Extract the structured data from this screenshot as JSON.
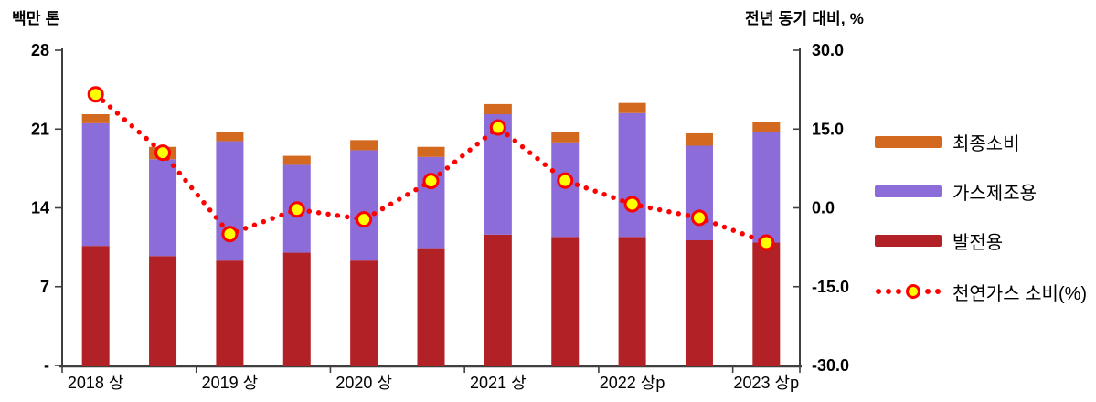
{
  "page": {
    "background": "#FFFFFF"
  },
  "chart_data": {
    "type": "bar",
    "subtype": "stacked-bar-with-right-axis-dotted-line",
    "title": "",
    "grid": false,
    "legend_position": "right",
    "n_slots": 11,
    "left_axis": {
      "title": "백만 톤",
      "range": [
        0,
        28
      ],
      "tick_values": [
        28,
        21,
        14,
        7,
        0
      ],
      "tick_labels": [
        "28",
        "21",
        "14",
        "7",
        "-"
      ]
    },
    "right_axis": {
      "title": "전년 동기 대비, %",
      "range": [
        -30,
        30
      ],
      "tick_values": [
        30,
        15,
        0,
        -15,
        -30
      ],
      "tick_labels": [
        "30.0",
        "15.0",
        "0.0",
        "-15.0",
        "-30.0"
      ]
    },
    "x_tick_labels": [
      {
        "label": "2018 상",
        "slot": 0
      },
      {
        "label": "2019 상",
        "slot": 2
      },
      {
        "label": "2020 상",
        "slot": 4
      },
      {
        "label": "2021 상",
        "slot": 6
      },
      {
        "label": "2022 상p",
        "slot": 8
      },
      {
        "label": "2023 상p",
        "slot": 10
      }
    ],
    "series": [
      {
        "name": "발전용",
        "color": "#B22126",
        "values": [
          10.7,
          9.8,
          9.4,
          10.1,
          9.4,
          10.5,
          11.7,
          11.5,
          11.5,
          11.2,
          11.0
        ]
      },
      {
        "name": "가스제조용",
        "color": "#8C6CD8",
        "values": [
          10.9,
          8.6,
          10.6,
          7.8,
          9.8,
          8.1,
          10.7,
          8.4,
          11.0,
          8.4,
          9.8
        ]
      },
      {
        "name": "최종소비",
        "color": "#D2691E",
        "values": [
          0.8,
          1.1,
          0.8,
          0.8,
          0.9,
          0.9,
          0.9,
          0.9,
          0.9,
          1.1,
          0.9
        ]
      }
    ],
    "line_series": {
      "name": "천연가스 소비(%)",
      "axis": "right",
      "line_color": "#FF0000",
      "marker_fill": "#FFFF00",
      "marker_stroke": "#FF0000",
      "values": [
        21.6,
        10.5,
        -5.0,
        -0.3,
        -2.2,
        5.1,
        15.3,
        5.2,
        0.7,
        -1.9,
        -6.6
      ]
    },
    "legend": [
      {
        "label": "최종소비",
        "swatch": "bar",
        "color": "#D2691E"
      },
      {
        "label": "가스제조용",
        "swatch": "bar",
        "color": "#8C6CD8"
      },
      {
        "label": "발전용",
        "swatch": "bar",
        "color": "#B22126"
      },
      {
        "label": "천연가스 소비(%)",
        "swatch": "dotted-line-marker",
        "color": "#FF0000",
        "marker_fill": "#FFFF00"
      }
    ],
    "colors": {
      "axis_line": "#3F3F3F",
      "tick_text": "#000000"
    }
  }
}
